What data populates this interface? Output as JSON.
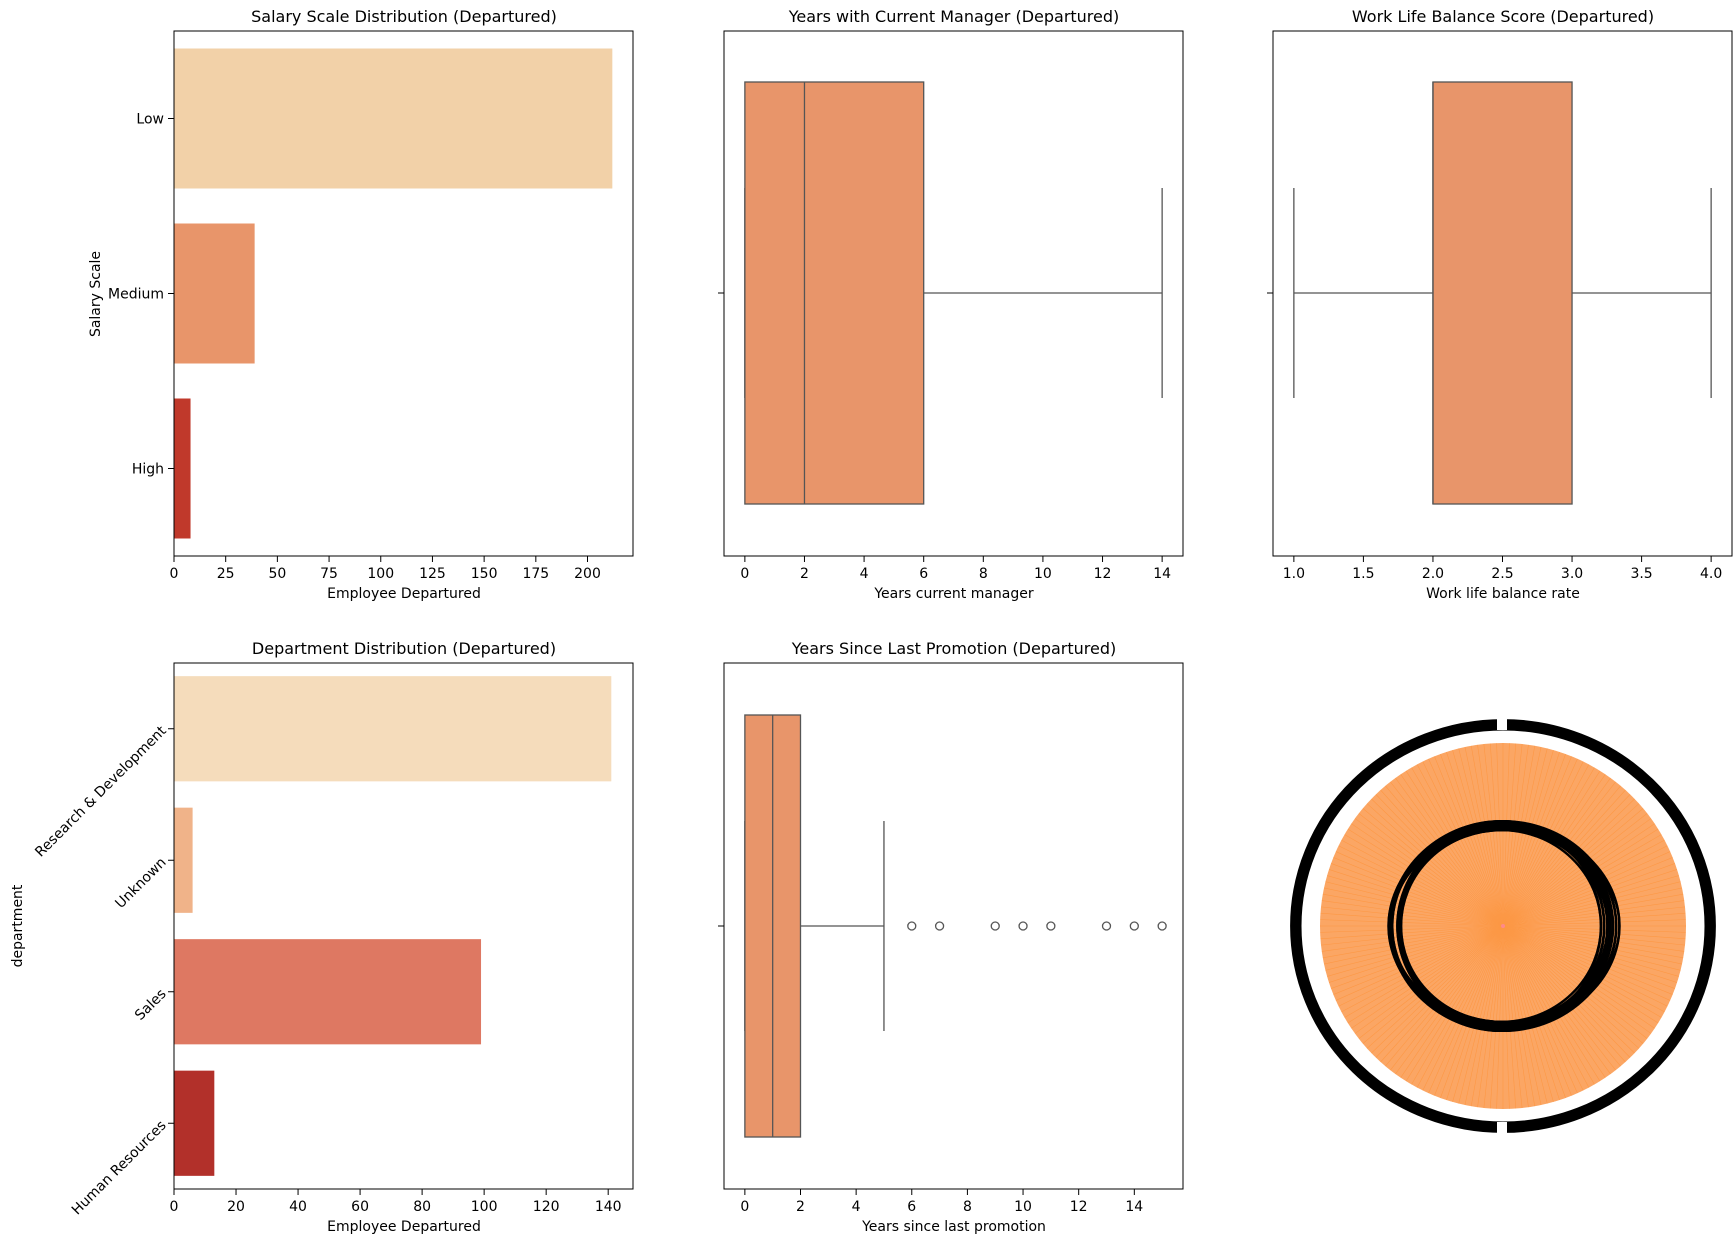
{
  "chart_data": [
    {
      "type": "bar",
      "orientation": "horizontal",
      "title": "Salary Scale Distribution (Departured)",
      "xlabel": "Employee Departured",
      "ylabel": "Salary Scale",
      "categories": [
        "Low",
        "Medium",
        "High"
      ],
      "values": [
        212,
        39,
        8
      ],
      "colors": [
        "#f2d1a8",
        "#e8956a",
        "#c0392b"
      ],
      "xlim": [
        0,
        222
      ],
      "xticks": [
        0,
        25,
        50,
        75,
        100,
        125,
        150,
        175,
        200
      ]
    },
    {
      "type": "box",
      "title": "Years with Current Manager (Departured)",
      "xlabel": "Years current manager",
      "min": 0,
      "q1": 0,
      "median": 2,
      "q3": 6,
      "max": 14,
      "outliers": [],
      "color": "#e8956a",
      "xlim": [
        -0.7,
        14.7
      ],
      "xticks": [
        0,
        2,
        4,
        6,
        8,
        10,
        12,
        14
      ]
    },
    {
      "type": "box",
      "title": "Work Life Balance Score (Departured)",
      "xlabel": "Work life balance rate",
      "min": 1.0,
      "q1": 2.0,
      "median": 2.0,
      "q3": 3.0,
      "max": 4.0,
      "outliers": [],
      "color": "#e8956a",
      "xlim": [
        0.85,
        4.15
      ],
      "xticks": [
        "1.0",
        "1.5",
        "2.0",
        "2.5",
        "3.0",
        "3.5",
        "4.0"
      ]
    },
    {
      "type": "bar",
      "orientation": "horizontal",
      "title": "Department Distribution (Departured)",
      "xlabel": "Employee Departured",
      "ylabel": "department",
      "categories": [
        "Research & Development",
        "Unknown",
        "Sales",
        "Human Resources"
      ],
      "values": [
        141,
        6,
        99,
        13
      ],
      "colors": [
        "#f5dcbb",
        "#f0b389",
        "#de7862",
        "#b2302a"
      ],
      "xlim": [
        0,
        148
      ],
      "xticks": [
        0,
        20,
        40,
        60,
        80,
        100,
        120,
        140
      ]
    },
    {
      "type": "box",
      "title": "Years Since Last Promotion (Departured)",
      "xlabel": "Years since last promotion",
      "min": 0,
      "q1": 0,
      "median": 1,
      "q3": 2,
      "max": 5,
      "outliers": [
        6,
        7,
        9,
        10,
        11,
        13,
        14,
        15
      ],
      "color": "#e8956a",
      "xlim": [
        -0.75,
        15.75
      ],
      "xticks": [
        0,
        2,
        4,
        6,
        8,
        10,
        12,
        14
      ]
    },
    {
      "type": "pie",
      "note_color_fill": "#fba664",
      "slice_edge_color": "#ff7f0e",
      "label_color": "#000000"
    }
  ]
}
